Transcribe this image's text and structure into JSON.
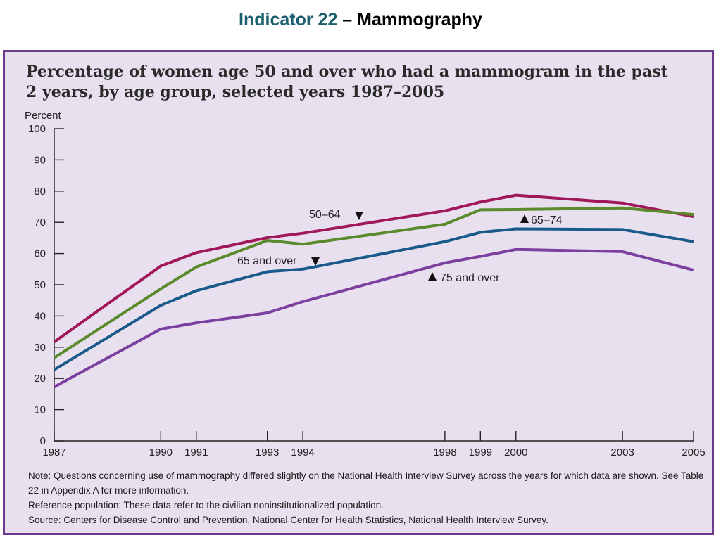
{
  "slide": {
    "title_accent": "Indicator 22",
    "title_rest": " – Mammography",
    "accent_color": "#1b5f6e"
  },
  "panel": {
    "background": "#e8e0ee",
    "border_color": "#6b3a8a"
  },
  "chart_data": {
    "type": "line",
    "title": "Percentage of women age 50 and over who had a mammogram in the past 2 years, by age group, selected years 1987–2005",
    "ylabel": "Percent",
    "xlabel": "",
    "ylim": [
      0,
      100
    ],
    "yticks": [
      0,
      10,
      20,
      30,
      40,
      50,
      60,
      70,
      80,
      90,
      100
    ],
    "x": [
      1987,
      1990,
      1991,
      1993,
      1994,
      1998,
      1999,
      2000,
      2003,
      2005
    ],
    "xtick_labels": [
      "1987",
      "1990",
      "1991",
      "1993",
      "1994",
      "1998",
      "1999",
      "2000",
      "2003",
      "2005"
    ],
    "grid": false,
    "legend": "inline labels",
    "series": [
      {
        "name": "50–64",
        "color": "#a0185a",
        "values": [
          31.7,
          56.0,
          60.3,
          65.1,
          66.5,
          73.7,
          76.5,
          78.7,
          76.2,
          71.8
        ]
      },
      {
        "name": "65–74",
        "color": "#5b8a2c",
        "values": [
          26.6,
          48.7,
          55.7,
          64.2,
          63.0,
          69.4,
          74.0,
          74.1,
          74.6,
          72.5
        ]
      },
      {
        "name": "65 and over",
        "color": "#1a5a8a",
        "values": [
          22.8,
          43.4,
          48.1,
          54.2,
          55.0,
          63.8,
          66.8,
          67.9,
          67.7,
          63.8
        ]
      },
      {
        "name": "75 and over",
        "color": "#7b3fa0",
        "values": [
          17.3,
          35.8,
          37.8,
          41.0,
          44.6,
          57.0,
          59.1,
          61.3,
          60.6,
          54.7
        ]
      }
    ],
    "annotations": [
      {
        "text": "50–64",
        "series": "50–64",
        "marker": "down"
      },
      {
        "text": "65–74",
        "series": "65–74",
        "marker": "up"
      },
      {
        "text": "65 and over",
        "series": "65 and over",
        "marker": "down"
      },
      {
        "text": "75 and over",
        "series": "75 and over",
        "marker": "up"
      }
    ]
  },
  "notes": {
    "note": "Note:  Questions concerning use of mammography differed slightly on the National Health Interview Survey across the years for which data are shown.  See Table 22 in Appendix A for more information.",
    "reference": "Reference population:  These data refer to the civilian noninstitutionalized population.",
    "source": "Source:  Centers for Disease Control and Prevention, National Center for Health Statistics, National Health Interview Survey."
  }
}
